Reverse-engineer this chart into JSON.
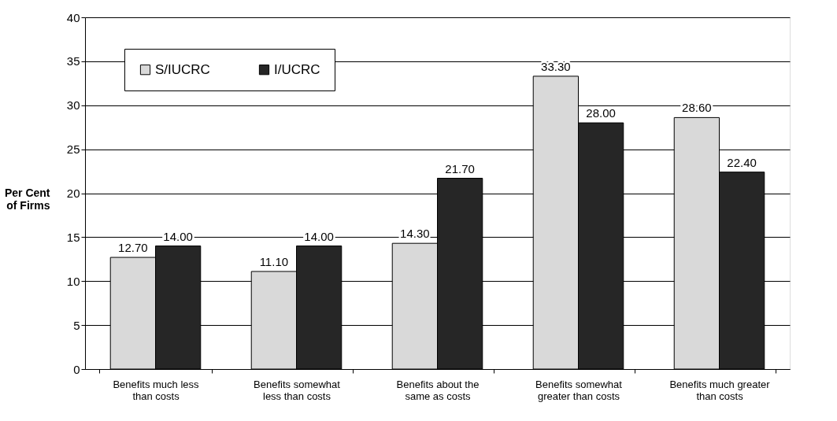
{
  "chart_data": {
    "type": "bar",
    "ylabel": "Per Cent of Firms",
    "categories": [
      "Benefits much less than costs",
      "Benefits somewhat less than costs",
      "Benefits about the same as costs",
      "Benefits somewhat greater than costs",
      "Benefits much greater than costs"
    ],
    "series": [
      {
        "name": "S/IUCRC",
        "color": "#d9d9d9",
        "values": [
          12.7,
          11.1,
          14.3,
          33.3,
          28.6
        ],
        "value_labels": [
          "12.70",
          "11.10",
          "14.30",
          "33.30",
          "28.60"
        ]
      },
      {
        "name": "I/UCRC",
        "color": "#262626",
        "values": [
          14.0,
          14.0,
          21.7,
          28.0,
          22.4
        ],
        "value_labels": [
          "14.00",
          "14.00",
          "21.70",
          "28.00",
          "22.40"
        ]
      }
    ],
    "ylim": [
      0,
      40
    ],
    "yticks": [
      0,
      5,
      10,
      15,
      20,
      25,
      30,
      35,
      40
    ],
    "grid": "y",
    "legend": "top left"
  }
}
